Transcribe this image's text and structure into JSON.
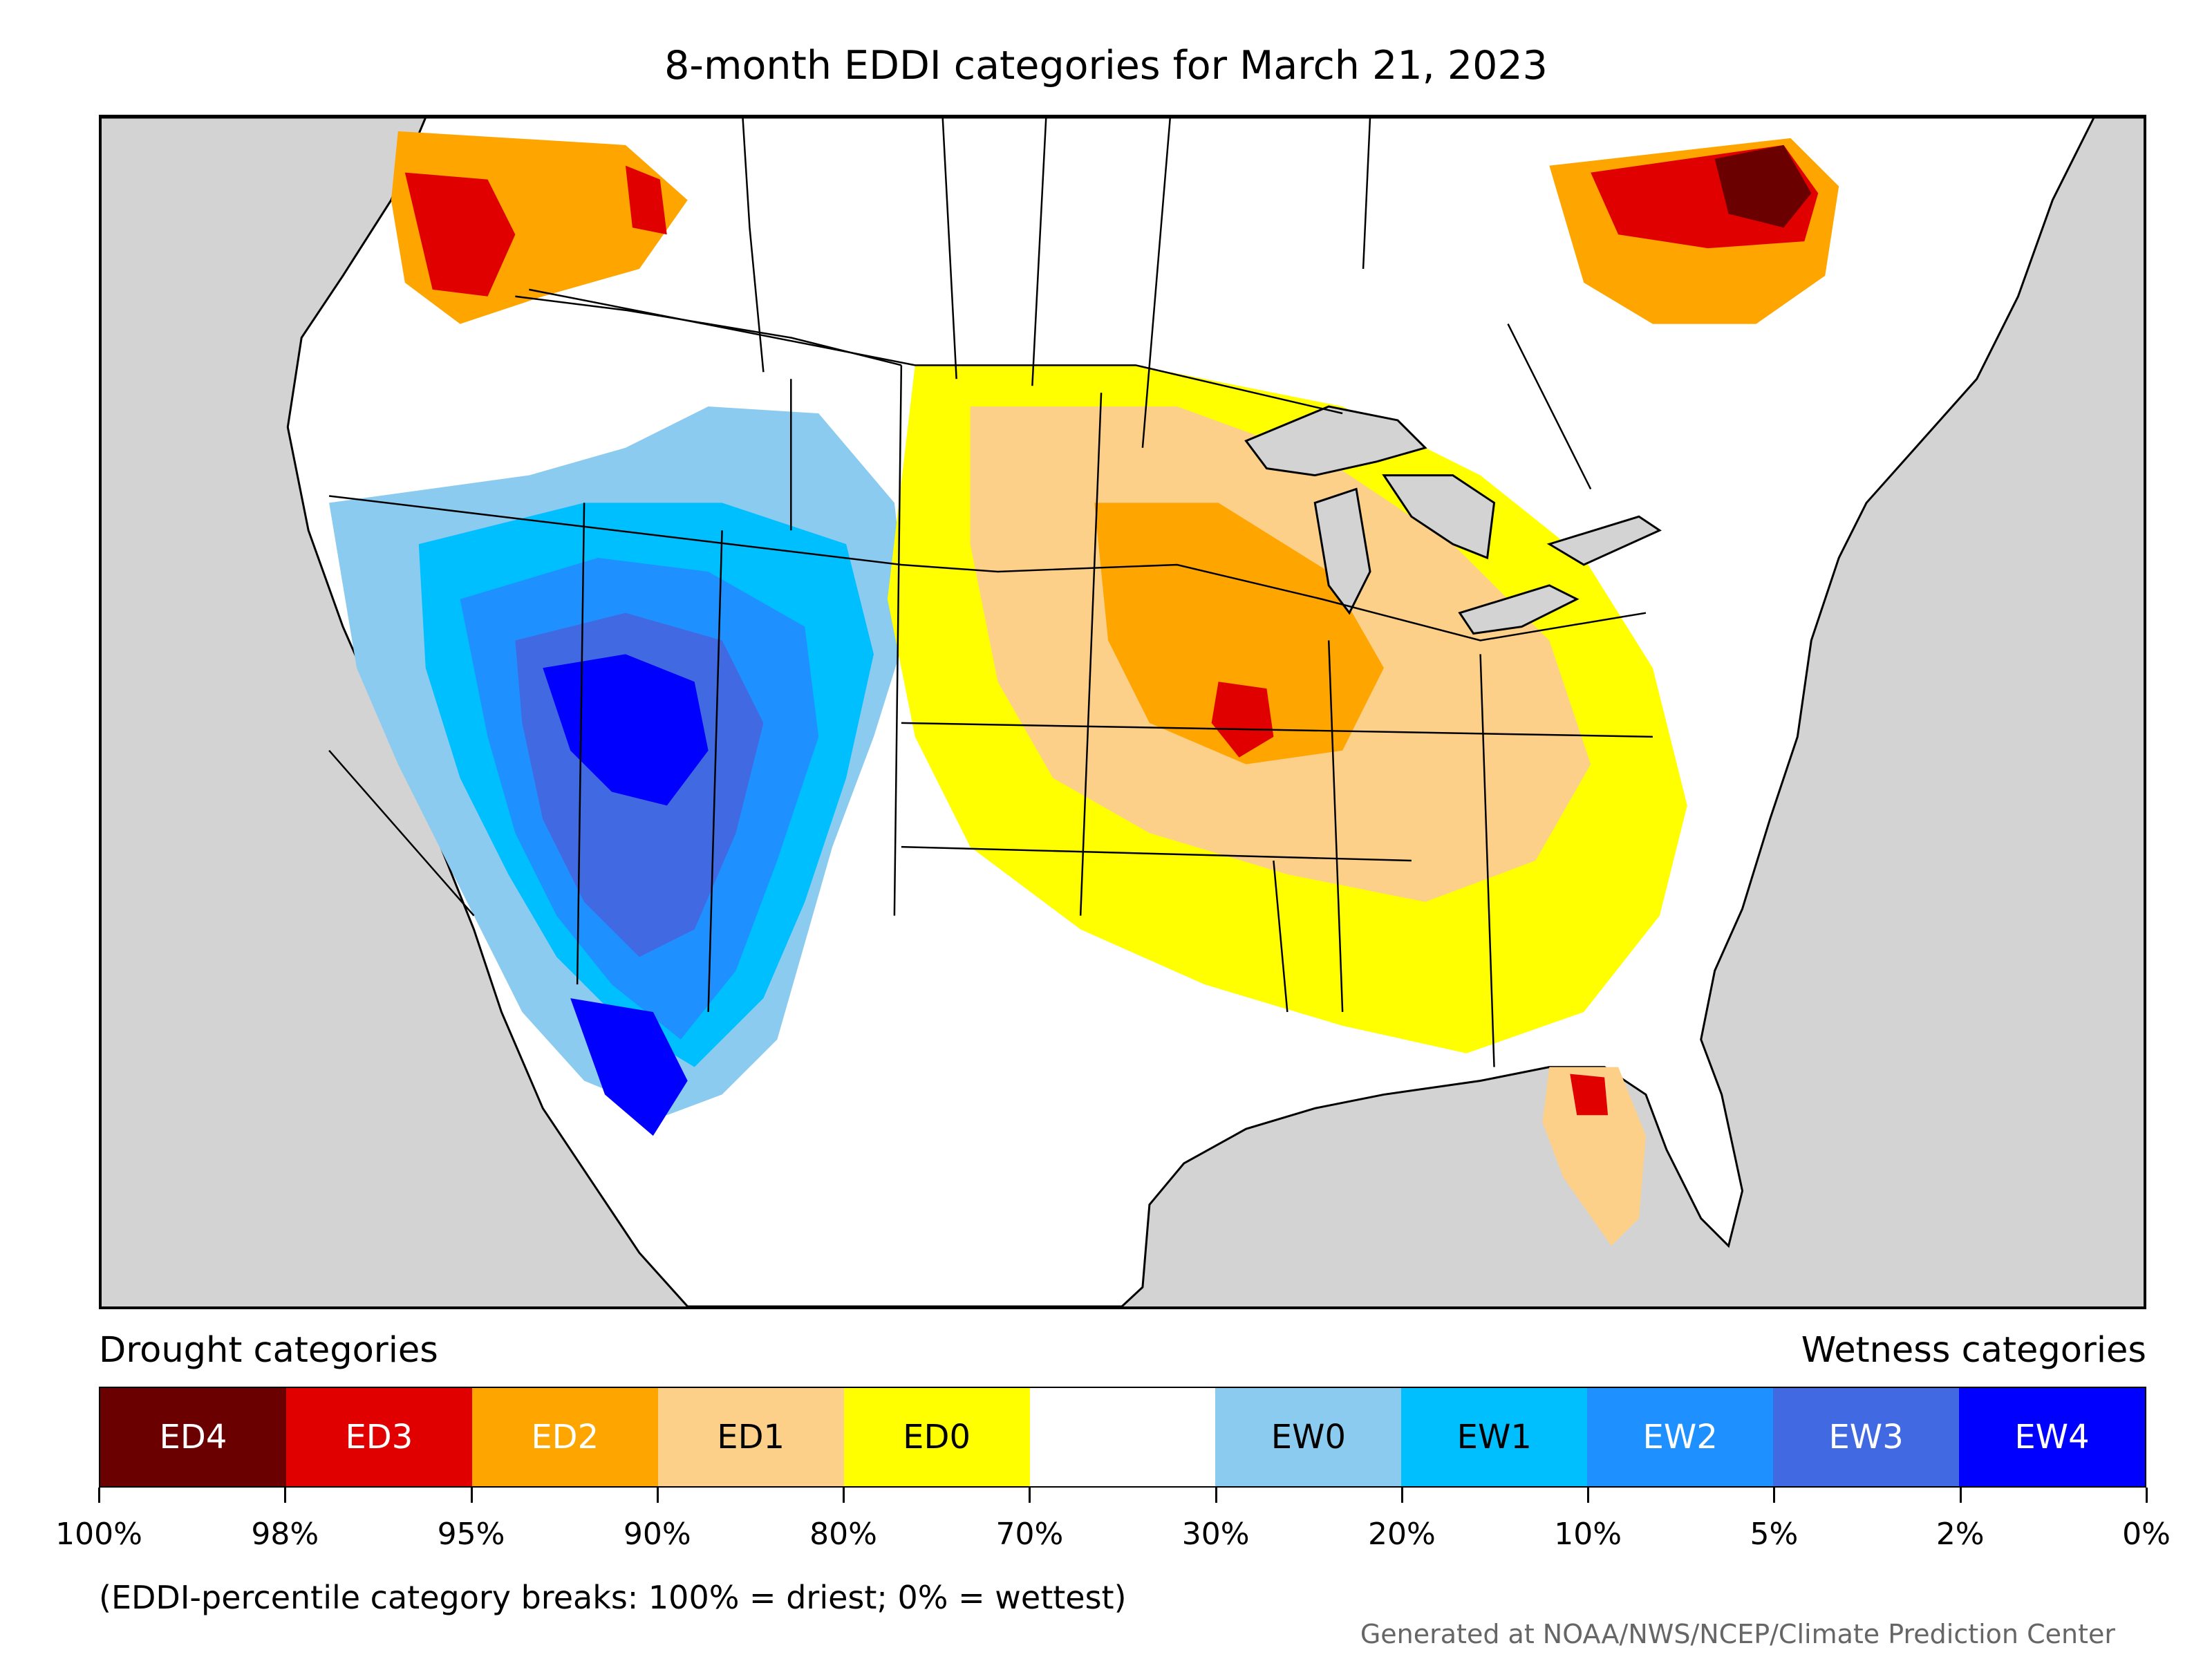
{
  "title": "8-month EDDI categories for March 21, 2023",
  "legend": {
    "left_heading": "Drought categories",
    "right_heading": "Wetness categories",
    "categories": [
      {
        "label": "ED4",
        "color": "#6b0000",
        "text_color": "#ffffff"
      },
      {
        "label": "ED3",
        "color": "#e00000",
        "text_color": "#ffffff"
      },
      {
        "label": "ED2",
        "color": "#ffa500",
        "text_color": "#ffffff"
      },
      {
        "label": "ED1",
        "color": "#fdd08a",
        "text_color": "#000000"
      },
      {
        "label": "ED0",
        "color": "#ffff00",
        "text_color": "#000000"
      },
      {
        "label": "",
        "color": "#ffffff",
        "text_color": "#000000"
      },
      {
        "label": "EW0",
        "color": "#8ccbf0",
        "text_color": "#000000"
      },
      {
        "label": "EW1",
        "color": "#00bfff",
        "text_color": "#000000"
      },
      {
        "label": "EW2",
        "color": "#1e90ff",
        "text_color": "#ffffff"
      },
      {
        "label": "EW3",
        "color": "#4169e1",
        "text_color": "#ffffff"
      },
      {
        "label": "EW4",
        "color": "#0000ff",
        "text_color": "#ffffff"
      }
    ],
    "ticks": [
      "100%",
      "98%",
      "95%",
      "90%",
      "80%",
      "70%",
      "30%",
      "20%",
      "10%",
      "5%",
      "2%",
      "0%"
    ]
  },
  "note": "(EDDI-percentile category breaks: 100% = driest; 0% = wettest)",
  "credit": "Generated at NOAA/NWS/NCEP/Climate Prediction Center",
  "map": {
    "ocean_color": "#d3d3d3",
    "land_color": "#ffffff"
  }
}
